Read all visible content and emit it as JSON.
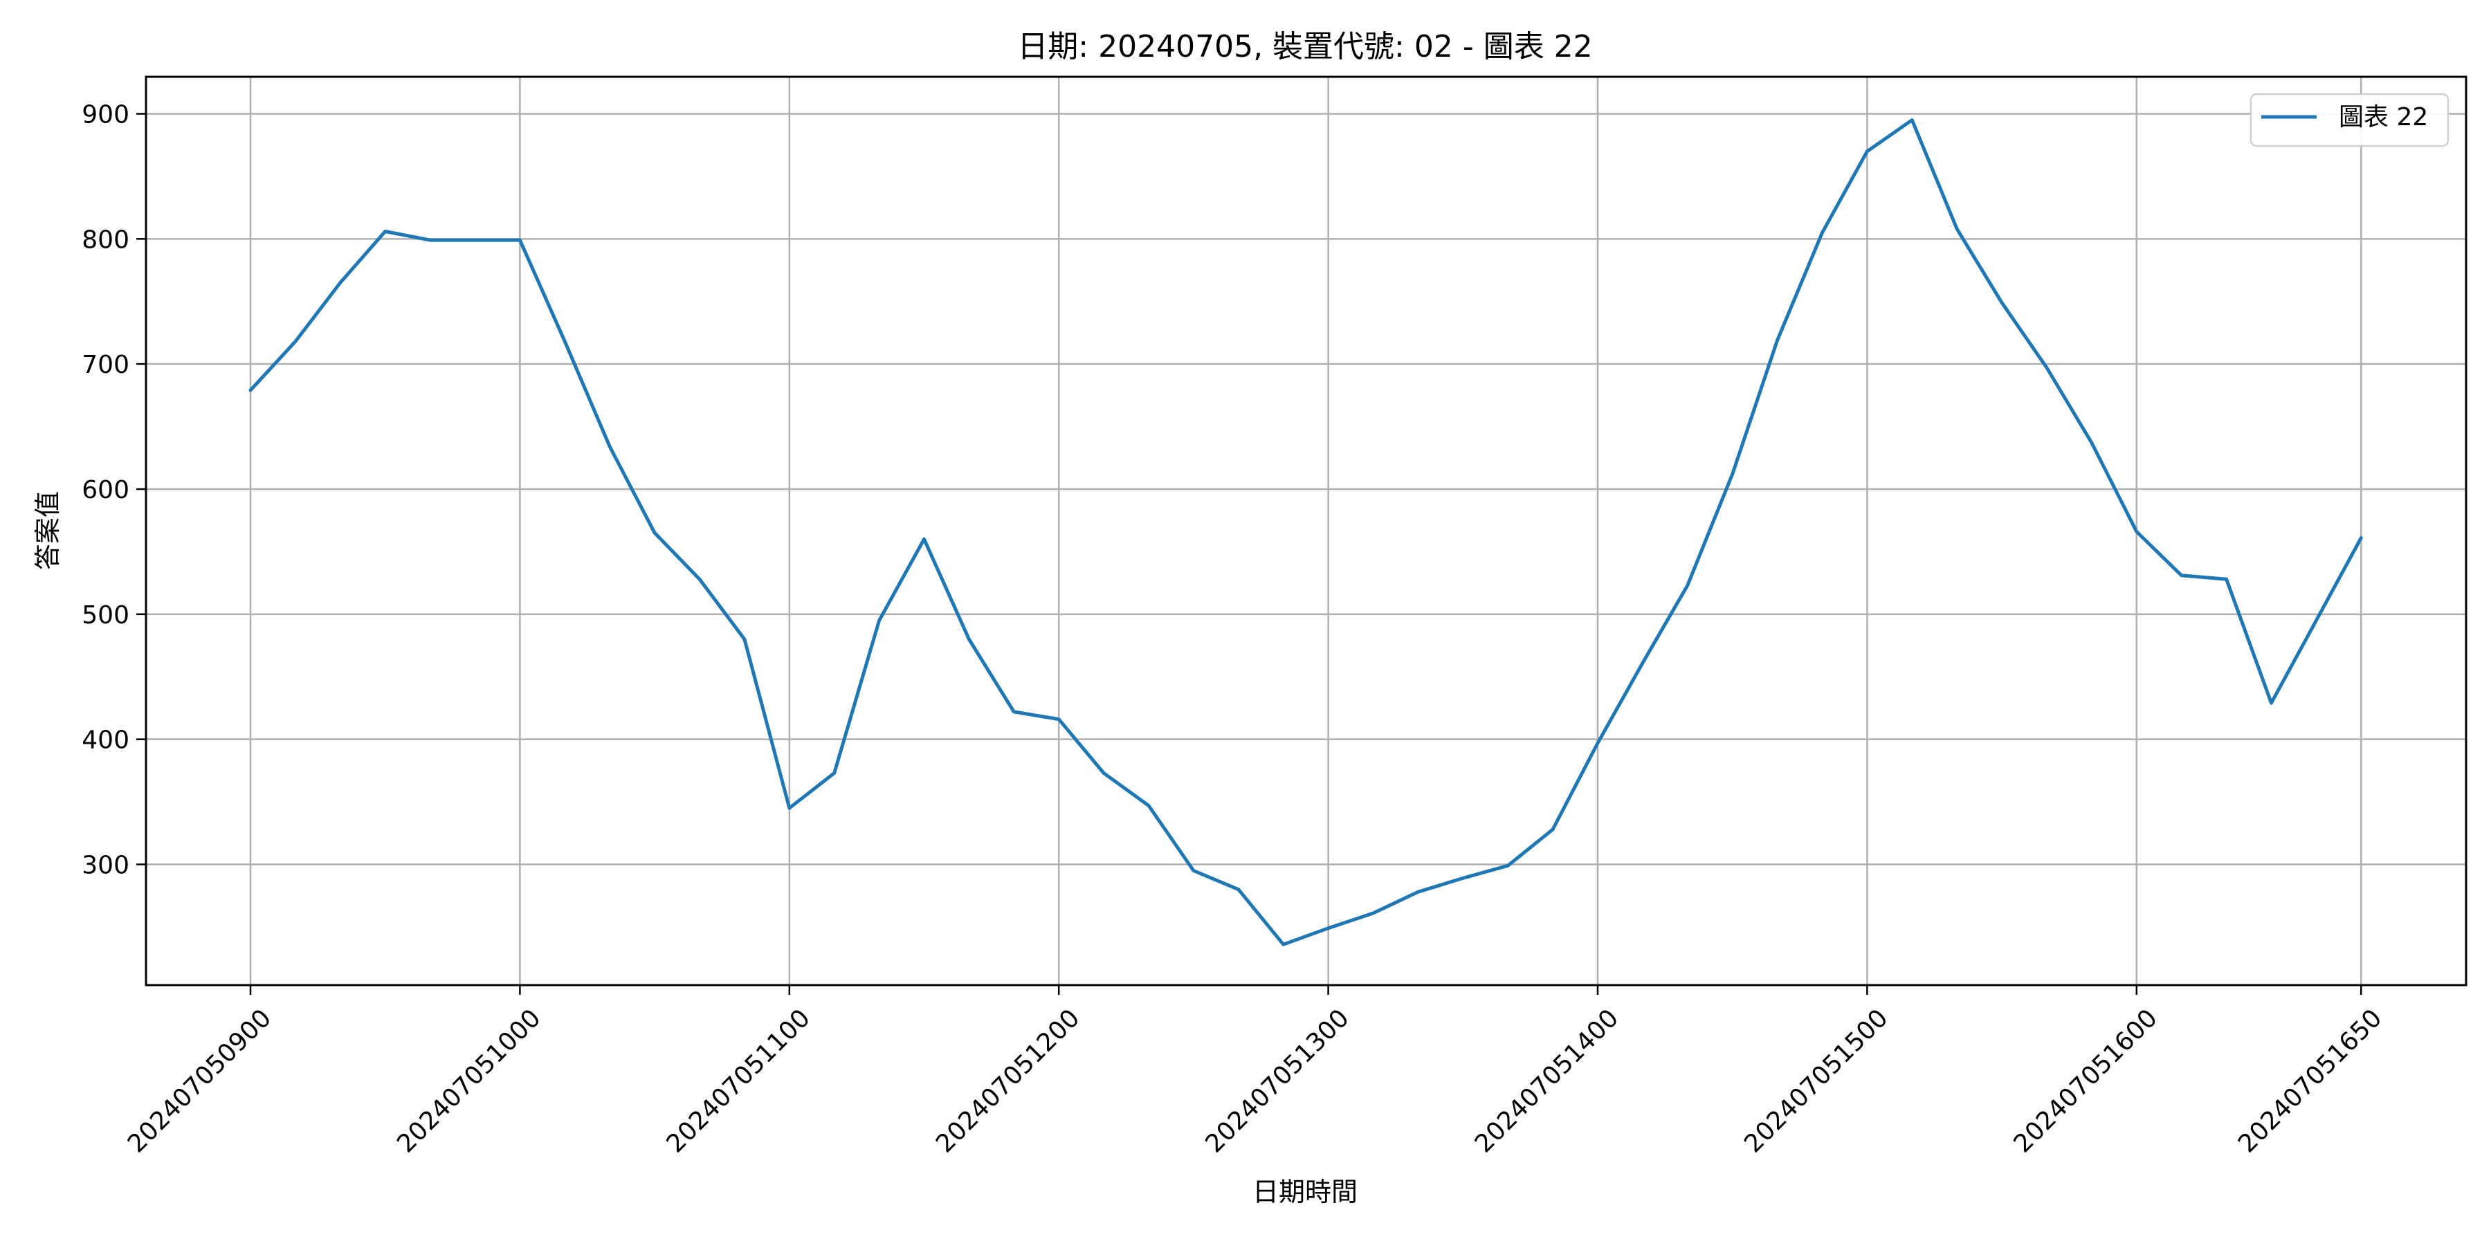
{
  "chart_data": {
    "type": "line",
    "title": "日期: 20240705, 裝置代號: 02 - 圖表 22",
    "xlabel": "日期時間",
    "ylabel": "答案值",
    "x_ticks": [
      "202407050900",
      "202407051000",
      "202407051100",
      "202407051200",
      "202407051300",
      "202407051400",
      "202407051500",
      "202407051600",
      "202407051650"
    ],
    "y_ticks": [
      300,
      400,
      500,
      600,
      700,
      800,
      900
    ],
    "ylim": [
      205,
      930
    ],
    "grid": true,
    "legend_position": "top-right",
    "series": [
      {
        "name": "圖表 22",
        "color": "#1f77b4",
        "x": [
          "202407050900",
          "202407050910",
          "202407050920",
          "202407050930",
          "202407050940",
          "202407050950",
          "202407051000",
          "202407051010",
          "202407051020",
          "202407051030",
          "202407051040",
          "202407051050",
          "202407051100",
          "202407051110",
          "202407051120",
          "202407051130",
          "202407051140",
          "202407051150",
          "202407051200",
          "202407051210",
          "202407051220",
          "202407051230",
          "202407051240",
          "202407051250",
          "202407051300",
          "202407051310",
          "202407051320",
          "202407051330",
          "202407051340",
          "202407051350",
          "202407051400",
          "202407051410",
          "202407051420",
          "202407051430",
          "202407051440",
          "202407051450",
          "202407051500",
          "202407051510",
          "202407051520",
          "202407051530",
          "202407051540",
          "202407051550",
          "202407051600",
          "202407051610",
          "202407051620",
          "202407051630",
          "202407051640",
          "202407051650"
        ],
        "values": [
          679,
          718,
          765,
          806,
          799,
          799,
          799,
          718,
          634,
          565,
          528,
          480,
          345,
          373,
          495,
          560,
          480,
          422,
          416,
          373,
          347,
          295,
          280,
          236,
          249,
          261,
          278,
          289,
          299,
          328,
          397,
          461,
          523,
          612,
          719,
          805,
          870,
          895,
          808,
          749,
          697,
          637,
          566,
          531,
          528,
          429,
          495,
          561
        ]
      }
    ]
  }
}
